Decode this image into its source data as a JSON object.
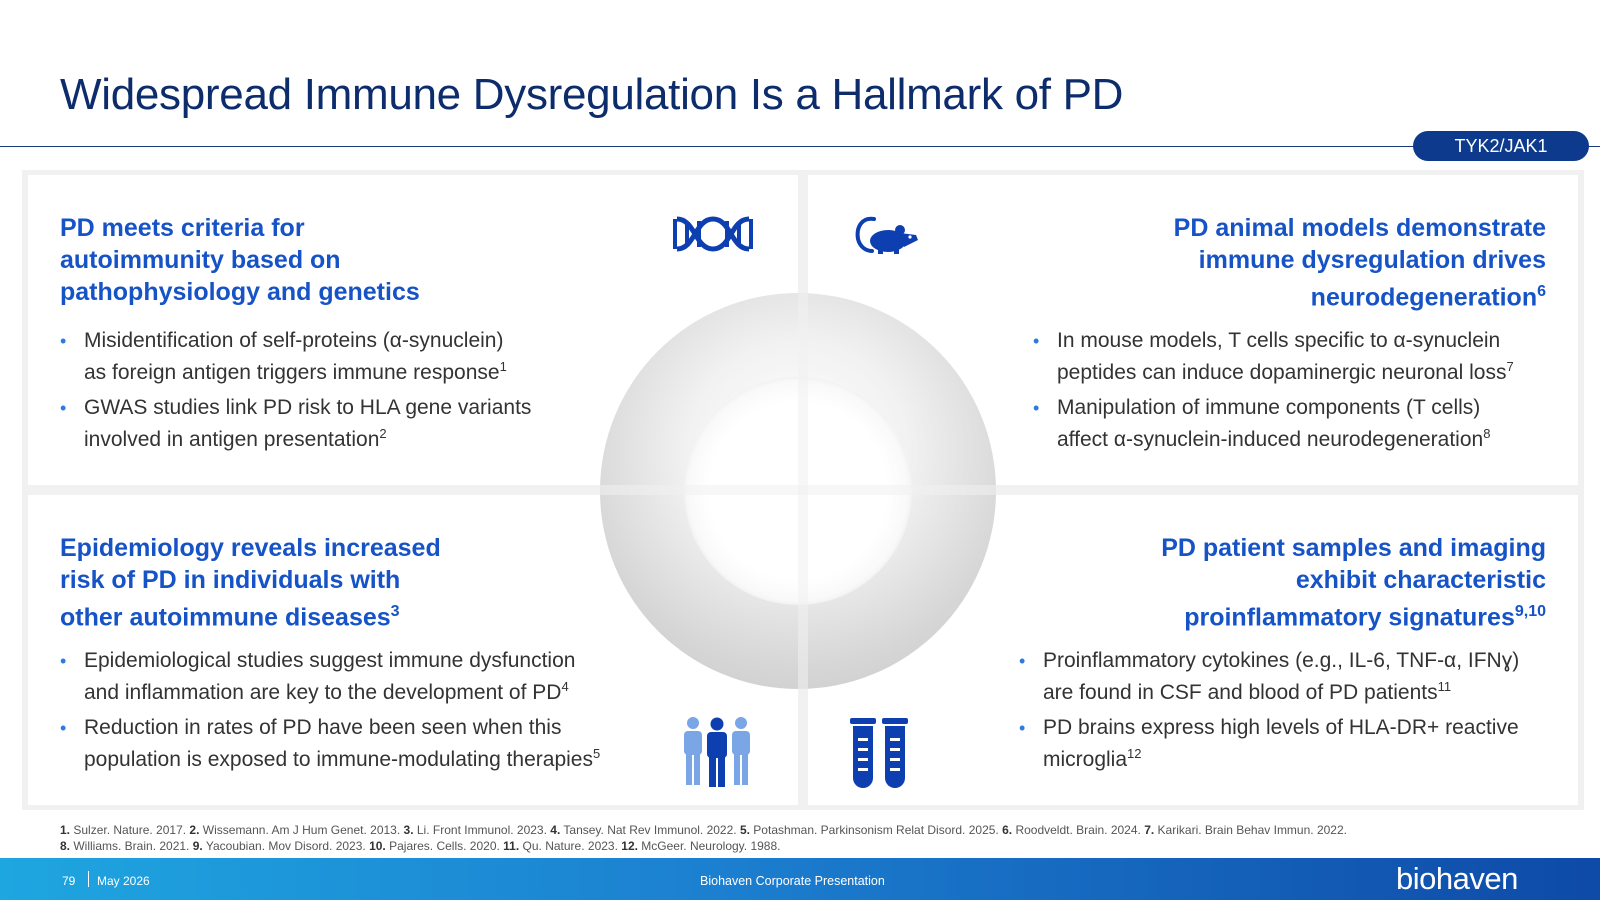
{
  "title": "Widespread Immune Dysregulation Is a Hallmark of PD",
  "tag": "TYK2/JAK1",
  "quadrants": {
    "top_left": {
      "heading_lines": [
        "PD meets criteria for",
        "autoimmunity based on",
        "pathophysiology and genetics"
      ],
      "heading_sup": "",
      "icon": "dna-icon",
      "bullets": [
        {
          "lines": [
            "Misidentification of self-proteins (α-synuclein)",
            "as foreign antigen triggers immune response"
          ],
          "sup": "1"
        },
        {
          "lines": [
            "GWAS studies link PD risk to HLA gene variants",
            "involved in antigen presentation"
          ],
          "sup": "2"
        }
      ]
    },
    "top_right": {
      "heading_lines": [
        "PD animal models demonstrate",
        "immune dysregulation drives",
        "neurodegeneration"
      ],
      "heading_sup": "6",
      "icon": "mouse-icon",
      "bullets": [
        {
          "lines": [
            "In mouse models, T cells specific to α-synuclein",
            "peptides can induce dopaminergic neuronal loss"
          ],
          "sup": "7"
        },
        {
          "lines": [
            "Manipulation of immune components (T cells)",
            "affect α-synuclein-induced neurodegeneration"
          ],
          "sup": "8"
        }
      ]
    },
    "bottom_left": {
      "heading_lines": [
        "Epidemiology reveals increased",
        "risk of PD in individuals with",
        "other autoimmune diseases"
      ],
      "heading_sup": "3",
      "icon": "people-group-icon",
      "bullets": [
        {
          "lines": [
            "Epidemiological studies suggest immune dysfunction",
            "and inflammation are key to the development of PD"
          ],
          "sup": "4"
        },
        {
          "lines": [
            "Reduction in rates of PD have been seen when this",
            "population is exposed to immune-modulating therapies"
          ],
          "sup": "5"
        }
      ]
    },
    "bottom_right": {
      "heading_lines": [
        "PD patient samples and imaging",
        "exhibit characteristic",
        "proinflammatory signatures"
      ],
      "heading_sup": "9,10",
      "icon": "test-tubes-icon",
      "bullets": [
        {
          "lines": [
            "Proinflammatory cytokines (e.g., IL-6, TNF-α, IFNɣ)",
            "are found in CSF and blood of PD patients"
          ],
          "sup": "11"
        },
        {
          "lines": [
            "PD brains express high levels of HLA-DR+ reactive",
            "microglia"
          ],
          "sup": "12"
        }
      ]
    }
  },
  "references": [
    [
      {
        "n": "1.",
        "t": " Sulzer. Nature. 2017. "
      },
      {
        "n": "2.",
        "t": " Wissemann. Am J Hum Genet. 2013. "
      },
      {
        "n": "3.",
        "t": " Li. Front Immunol. 2023. "
      },
      {
        "n": "4.",
        "t": " Tansey. Nat Rev Immunol. 2022. "
      },
      {
        "n": "5.",
        "t": " Potashman. Parkinsonism Relat Disord. 2025. "
      },
      {
        "n": "6.",
        "t": " Roodveldt. Brain. 2024. "
      },
      {
        "n": "7.",
        "t": " Karikari. Brain Behav Immun. 2022."
      }
    ],
    [
      {
        "n": "8.",
        "t": " Williams. Brain. 2021. "
      },
      {
        "n": "9.",
        "t": " Yacoubian. Mov Disord. 2023. "
      },
      {
        "n": "10.",
        "t": " Pajares. Cells. 2020. "
      },
      {
        "n": "11.",
        "t": " Qu. Nature. 2023. "
      },
      {
        "n": "12.",
        "t": " McGeer. Neurology. 1988."
      }
    ]
  ],
  "footer": {
    "page_number": "79",
    "date": "May 2026",
    "center_text": "Biohaven Corporate Presentation",
    "logo": "biohaven"
  },
  "colors": {
    "title": "#0d2c6c",
    "heading": "#1553c7",
    "bullet_dot": "#2d7be0",
    "icon": "#0d3fb0",
    "tag_bg": "#0d3a8c"
  }
}
